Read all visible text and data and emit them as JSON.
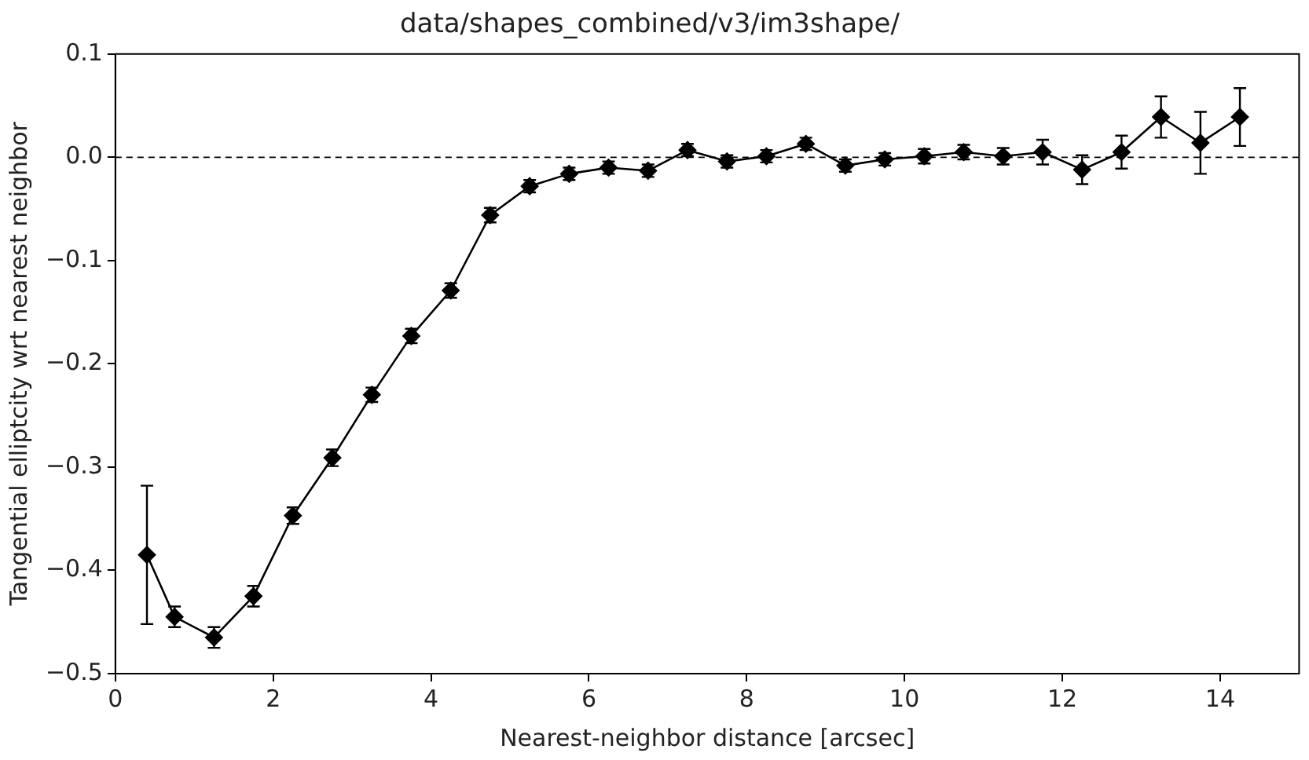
{
  "chart_data": {
    "type": "line",
    "title": "data/shapes_combined/v3/im3shape/",
    "xlabel": "Nearest-neighbor distance [arcsec]",
    "ylabel": "Tangential elliptcity wrt nearest neighbor",
    "x": [
      0.4,
      0.75,
      1.25,
      1.75,
      2.25,
      2.75,
      3.25,
      3.75,
      4.25,
      4.75,
      5.25,
      5.75,
      6.25,
      6.75,
      7.25,
      7.75,
      8.25,
      8.75,
      9.25,
      9.75,
      10.25,
      10.75,
      11.25,
      11.75,
      12.25,
      12.75,
      13.25,
      13.75,
      14.25
    ],
    "series": [
      {
        "color": "#000000",
        "values": [
          -0.385,
          -0.445,
          -0.465,
          -0.425,
          -0.347,
          -0.291,
          -0.23,
          -0.173,
          -0.129,
          -0.056,
          -0.028,
          -0.016,
          -0.01,
          -0.013,
          0.007,
          -0.004,
          0.001,
          0.013,
          -0.008,
          -0.002,
          0.001,
          0.005,
          0.001,
          0.005,
          -0.012,
          0.005,
          0.039,
          0.014,
          0.039
        ],
        "errors": [
          0.067,
          0.01,
          0.01,
          0.01,
          0.008,
          0.008,
          0.007,
          0.007,
          0.007,
          0.007,
          0.006,
          0.006,
          0.006,
          0.006,
          0.006,
          0.006,
          0.006,
          0.006,
          0.006,
          0.006,
          0.007,
          0.007,
          0.008,
          0.012,
          0.014,
          0.016,
          0.02,
          0.03,
          0.028
        ]
      }
    ],
    "xlim": [
      0,
      15
    ],
    "xticks": [
      0,
      2,
      4,
      6,
      8,
      10,
      12,
      14
    ],
    "ylim": [
      -0.5,
      0.1
    ],
    "yticks": [
      {
        "value": -0.5,
        "label": "−0.5"
      },
      {
        "value": -0.4,
        "label": "−0.4"
      },
      {
        "value": -0.3,
        "label": "−0.3"
      },
      {
        "value": -0.2,
        "label": "−0.2"
      },
      {
        "value": -0.1,
        "label": "−0.1"
      },
      {
        "value": 0,
        "label": "0.0"
      },
      {
        "value": 0.1,
        "label": "0.1"
      }
    ],
    "ref_lines": [
      {
        "axis": "y",
        "value": 0,
        "line_style": "dashed",
        "color": "#000000"
      }
    ],
    "grid": false,
    "legend": false,
    "marker": "diamond",
    "line_style": "solid"
  }
}
